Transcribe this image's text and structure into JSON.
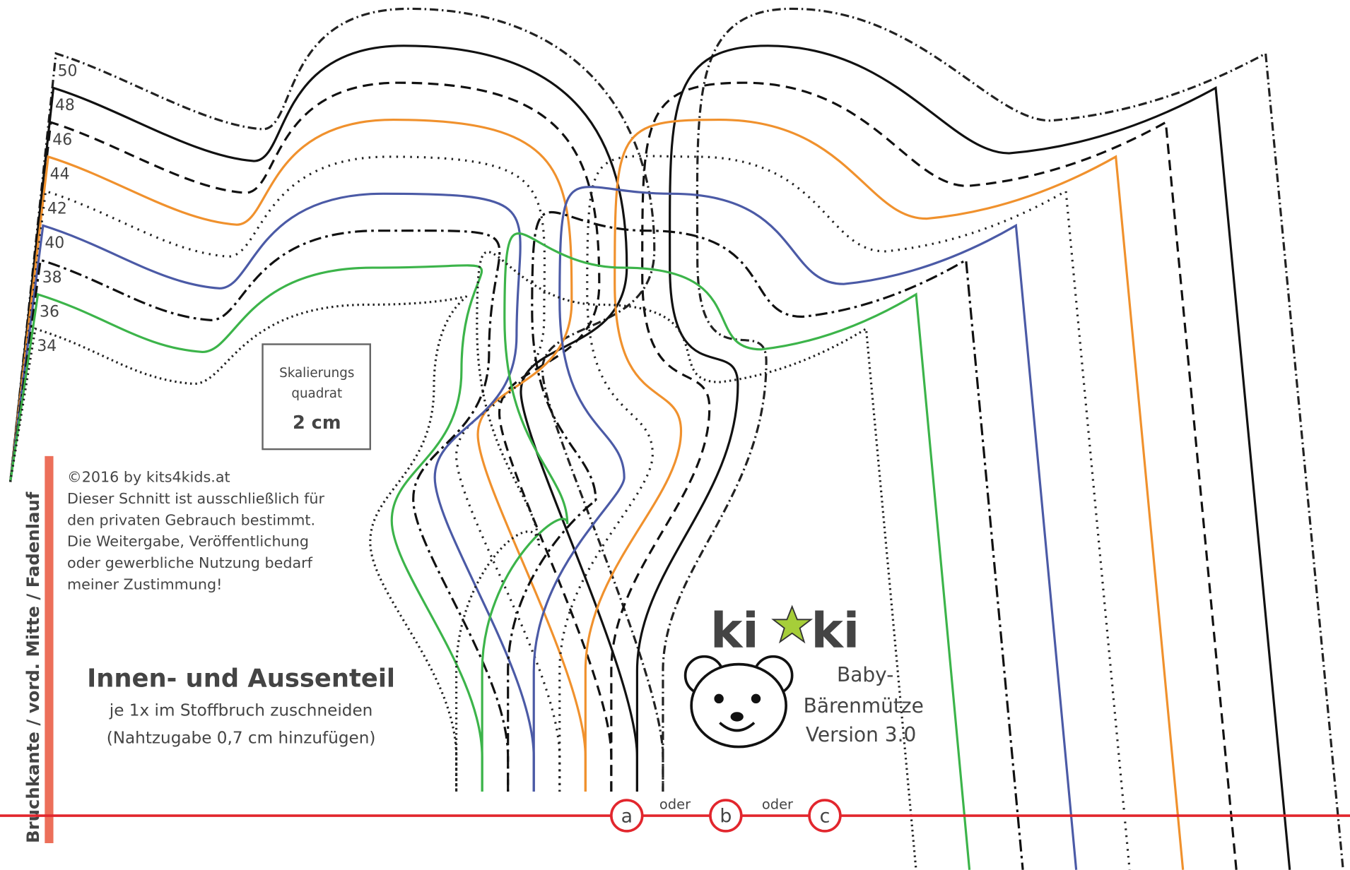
{
  "size_labels": [
    "50",
    "48",
    "46",
    "44",
    "42",
    "40",
    "38",
    "36",
    "34"
  ],
  "scale_square": {
    "title": [
      "Skalierungs",
      "quadrat"
    ],
    "size": "2 cm"
  },
  "copyright": [
    "©2016 by kits4kids.at",
    "Dieser Schnitt ist ausschließlich für",
    "den privaten Gebrauch bestimmt.",
    "Die Weitergabe, Veröffentlichung",
    "oder gewerbliche Nutzung bedarf",
    "meiner Zustimmung!"
  ],
  "piece": {
    "title": "Innen- und Aussenteil",
    "note": "je 1x im Stoffbruch zuschneiden",
    "seam": "(Nahtzugabe 0,7 cm hinzufügen)"
  },
  "fold_label": "Bruchkante / vord. Mitte / Fadenlauf",
  "logo": {
    "brand": [
      "ki",
      "ki"
    ],
    "product": [
      "Baby-",
      "Bärenmütze",
      "Version 3.0"
    ]
  },
  "options": [
    "a",
    "b",
    "c"
  ],
  "separators": [
    "oder",
    "oder"
  ]
}
